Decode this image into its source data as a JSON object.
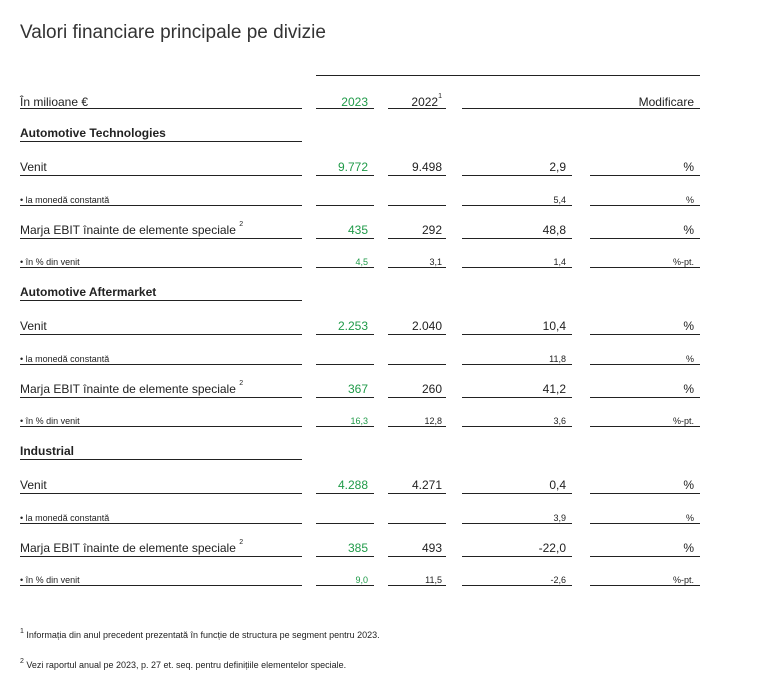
{
  "title": "Valori financiare principale pe divizie",
  "header": {
    "unit": "În milioane €",
    "year_current": "2023",
    "year_previous": "2022",
    "year_previous_note": "1",
    "change": "Modificare"
  },
  "divisions": [
    {
      "name": "Automotive Technologies",
      "rows": [
        {
          "label": "Venit",
          "note": "",
          "current": "9.772",
          "previous": "9.498",
          "change": "2,9",
          "unit": "%"
        },
        {
          "label": "• la monedă constantă",
          "note": "",
          "current": "",
          "previous": "",
          "change": "5,4",
          "unit": "%"
        },
        {
          "label": "Marja EBIT înainte de elemente speciale",
          "note": "2",
          "current": "435",
          "previous": "292",
          "change": "48,8",
          "unit": "%"
        },
        {
          "label": "• în % din venit",
          "note": "",
          "current": "4,5",
          "previous": "3,1",
          "change": "1,4",
          "unit": "%-pt."
        }
      ]
    },
    {
      "name": "Automotive Aftermarket",
      "rows": [
        {
          "label": "Venit",
          "note": "",
          "current": "2.253",
          "previous": "2.040",
          "change": "10,4",
          "unit": "%"
        },
        {
          "label": "• la monedă constantă",
          "note": "",
          "current": "",
          "previous": "",
          "change": "11,8",
          "unit": "%"
        },
        {
          "label": "Marja EBIT înainte de elemente speciale",
          "note": "2",
          "current": "367",
          "previous": "260",
          "change": "41,2",
          "unit": "%"
        },
        {
          "label": "• în % din venit",
          "note": "",
          "current": "16,3",
          "previous": "12,8",
          "change": "3,6",
          "unit": "%-pt."
        }
      ]
    },
    {
      "name": "Industrial",
      "rows": [
        {
          "label": "Venit",
          "note": "",
          "current": "4.288",
          "previous": "4.271",
          "change": "0,4",
          "unit": "%"
        },
        {
          "label": "• la monedă constantă",
          "note": "",
          "current": "",
          "previous": "",
          "change": "3,9",
          "unit": "%"
        },
        {
          "label": "Marja EBIT înainte de elemente speciale",
          "note": "2",
          "current": "385",
          "previous": "493",
          "change": "-22,0",
          "unit": "%"
        },
        {
          "label": "• în % din venit",
          "note": "",
          "current": "9,0",
          "previous": "11,5",
          "change": "-2,6",
          "unit": "%-pt."
        }
      ]
    }
  ],
  "footnotes": [
    {
      "mark": "1",
      "text": "Informația din anul precedent prezentată în funcție de structura pe segment pentru 2023."
    },
    {
      "mark": "2",
      "text": "Vezi raportul anual pe 2023, p. 27 et. seq. pentru definițiile elementelor speciale."
    }
  ]
}
